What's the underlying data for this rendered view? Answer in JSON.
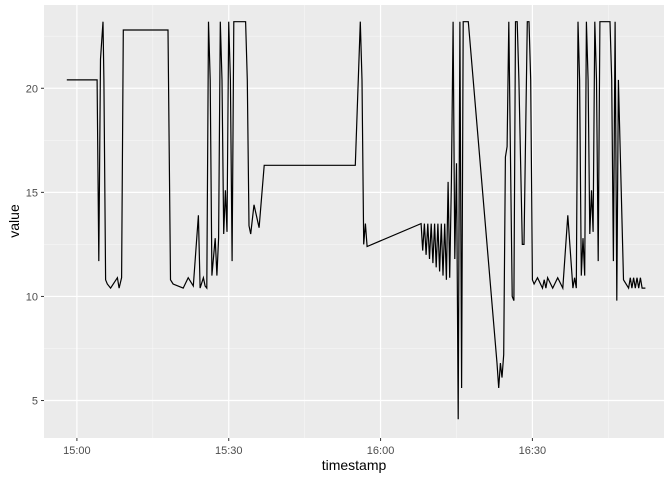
{
  "chart_data": {
    "type": "line",
    "title": "",
    "xlabel": "timestamp",
    "ylabel": "value",
    "x_ticks": [
      "15:00",
      "15:30",
      "16:00",
      "16:30"
    ],
    "x_tick_values": [
      "15:00",
      "15:30",
      "16:00",
      "16:30"
    ],
    "x_range": [
      "14:53:30",
      "16:56:00"
    ],
    "y_ticks": [
      5,
      10,
      15,
      20
    ],
    "ylim": [
      3.2,
      24.0
    ],
    "grid": true,
    "legend": "none",
    "colors": {
      "panel": "#ebebeb",
      "grid": "#ffffff",
      "line": "#000000"
    },
    "series": [
      {
        "x": [
          "14:58:00",
          "15:03:00",
          "15:04:00",
          "15:04:20",
          "15:04:40",
          "15:05:10",
          "15:05:20",
          "15:05:40",
          "15:06:00",
          "15:06:40",
          "15:08:00",
          "15:08:20",
          "15:08:50",
          "15:09:10",
          "15:09:20",
          "15:09:40",
          "15:18:00",
          "15:18:30",
          "15:19:00",
          "15:21:00",
          "15:22:00",
          "15:23:00",
          "15:24:00",
          "15:24:20",
          "15:25:00",
          "15:25:20",
          "15:25:40",
          "15:26:00",
          "15:26:20",
          "15:26:40",
          "15:27:20",
          "15:27:40",
          "15:28:00",
          "15:28:20",
          "15:28:40",
          "15:29:00",
          "15:29:20",
          "15:29:40",
          "15:30:00",
          "15:30:20",
          "15:30:40",
          "15:31:00",
          "15:31:20",
          "15:31:40",
          "15:32:00",
          "15:32:20",
          "15:32:40",
          "15:33:00",
          "15:33:20",
          "15:33:40",
          "15:34:00",
          "15:34:20",
          "15:35:00",
          "15:36:00",
          "15:37:00",
          "15:37:20",
          "15:37:40",
          "15:38:00",
          "15:38:20",
          "15:38:40",
          "15:39:00",
          "15:39:20",
          "15:39:40",
          "15:40:00",
          "15:50:00",
          "15:55:00",
          "15:56:00",
          "15:56:20",
          "15:56:40",
          "15:57:00",
          "15:57:20",
          "16:08:00",
          "16:08:20",
          "16:08:40",
          "16:09:00",
          "16:09:20",
          "16:09:40",
          "16:10:00",
          "16:10:20",
          "16:10:40",
          "16:11:00",
          "16:11:20",
          "16:11:40",
          "16:12:00",
          "16:12:20",
          "16:12:40",
          "16:13:00",
          "16:13:20",
          "16:13:40",
          "16:14:00",
          "16:14:20",
          "16:14:40",
          "16:15:00",
          "16:15:20",
          "16:15:40",
          "16:16:00",
          "16:16:20",
          "16:16:40",
          "16:17:00",
          "16:17:20",
          "16:23:00",
          "16:23:20",
          "16:23:40",
          "16:24:00",
          "16:24:20",
          "16:24:40",
          "16:25:00",
          "16:25:20",
          "16:26:00",
          "16:26:20",
          "16:26:40",
          "16:27:00",
          "16:27:20",
          "16:28:00",
          "16:28:20",
          "16:29:00",
          "16:29:20",
          "16:29:40",
          "16:30:00",
          "16:30:20",
          "16:31:00",
          "16:32:00",
          "16:32:20",
          "16:32:40",
          "16:33:00",
          "16:34:00",
          "16:35:00",
          "16:36:00",
          "16:37:00",
          "16:38:00",
          "16:38:20",
          "16:38:40",
          "16:39:00",
          "16:39:20",
          "16:39:40",
          "16:40:00",
          "16:40:20",
          "16:40:40",
          "16:41:00",
          "16:41:20",
          "16:41:40",
          "16:42:00",
          "16:42:20",
          "16:42:40",
          "16:43:00",
          "16:43:20",
          "16:43:40",
          "16:44:00",
          "16:44:20",
          "16:44:40",
          "16:45:00",
          "16:45:20",
          "16:45:40",
          "16:46:00",
          "16:46:20",
          "16:46:40",
          "16:47:00",
          "16:48:00",
          "16:49:00",
          "16:49:20",
          "16:49:40",
          "16:50:00",
          "16:50:20",
          "16:50:40",
          "16:51:00",
          "16:51:20",
          "16:51:40",
          "16:52:00",
          "16:52:20"
        ],
        "y": [
          20.4,
          20.4,
          20.4,
          11.7,
          21.4,
          23.2,
          20.4,
          10.8,
          10.6,
          10.4,
          10.9,
          10.4,
          10.9,
          22.8,
          22.8,
          22.8,
          22.8,
          10.8,
          10.6,
          10.4,
          10.9,
          10.5,
          13.9,
          10.4,
          10.9,
          10.5,
          10.4,
          23.2,
          20.4,
          11.0,
          12.8,
          11.0,
          12.8,
          23.2,
          20.4,
          13.0,
          15.1,
          13.1,
          23.2,
          20.4,
          11.7,
          23.2,
          23.2,
          23.2,
          23.2,
          23.2,
          23.2,
          23.2,
          23.2,
          20.4,
          13.4,
          13.0,
          14.4,
          13.3,
          16.3,
          16.3,
          16.3,
          16.3,
          16.3,
          16.3,
          16.3,
          16.3,
          16.3,
          16.3,
          16.3,
          16.3,
          23.2,
          20.4,
          12.5,
          13.5,
          12.4,
          13.5,
          12.2,
          13.5,
          12.0,
          13.5,
          11.8,
          13.5,
          11.6,
          13.5,
          11.4,
          13.5,
          11.2,
          13.5,
          11.0,
          13.5,
          10.8,
          15.5,
          10.9,
          15.5,
          23.2,
          11.8,
          16.4,
          4.1,
          23.2,
          5.6,
          23.2,
          23.2,
          23.2,
          23.2,
          6.8,
          5.6,
          6.8,
          6.1,
          7.2,
          16.7,
          17.2,
          23.2,
          10.0,
          9.8,
          23.2,
          23.2,
          20.4,
          12.5,
          12.5,
          23.2,
          23.2,
          20.4,
          10.8,
          10.6,
          10.9,
          10.4,
          10.8,
          10.4,
          10.9,
          10.4,
          10.9,
          10.4,
          13.9,
          10.4,
          10.9,
          10.4,
          23.2,
          20.4,
          11.0,
          12.8,
          11.0,
          23.2,
          20.4,
          13.0,
          15.1,
          13.1,
          23.2,
          20.4,
          11.7,
          23.2,
          23.2,
          23.2,
          23.2,
          23.2,
          23.2,
          23.2,
          20.4,
          11.7,
          23.2,
          9.8,
          20.4,
          10.8,
          10.4,
          10.9,
          10.4,
          10.9,
          10.4,
          10.9,
          10.4,
          10.9,
          10.4,
          10.4,
          10.4
        ]
      }
    ]
  }
}
